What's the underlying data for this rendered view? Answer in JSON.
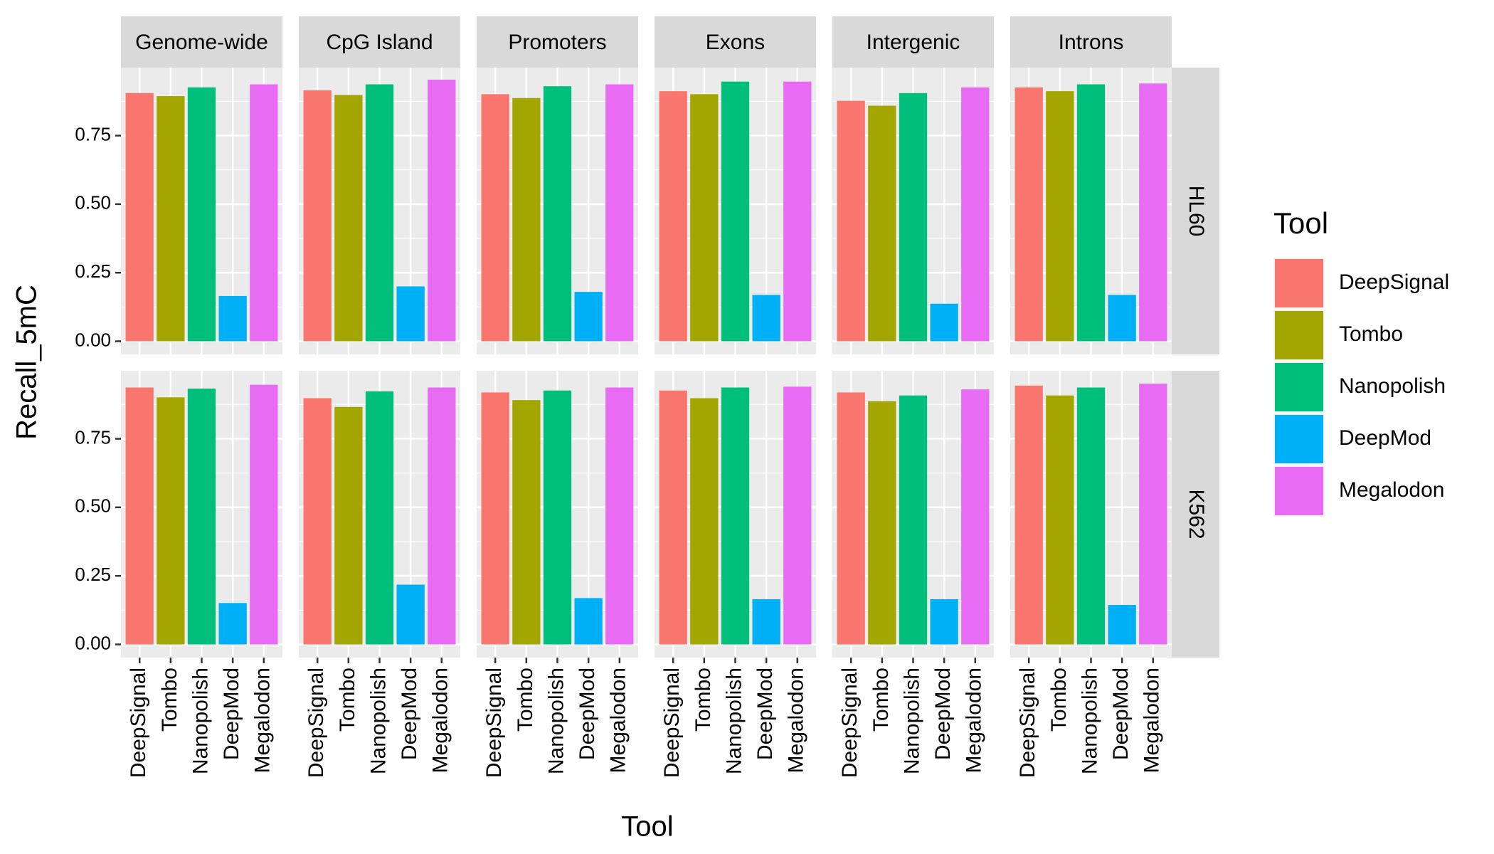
{
  "chart_data": {
    "type": "bar",
    "xlabel": "Tool",
    "ylabel": "Recall_5mC",
    "legend_title": "Tool",
    "categories": [
      "DeepSignal",
      "Tombo",
      "Nanopolish",
      "DeepMod",
      "Megalodon"
    ],
    "colors": [
      "#F8766D",
      "#A3A500",
      "#00BF7D",
      "#00B0F6",
      "#E76BF3"
    ],
    "facet_cols": [
      "Genome-wide",
      "CpG Island",
      "Promoters",
      "Exons",
      "Intergenic",
      "Introns"
    ],
    "facet_rows": [
      "HL60",
      "K562"
    ],
    "panels": [
      [
        [
          0.905,
          0.894,
          0.926,
          0.165,
          0.937
        ],
        [
          0.915,
          0.898,
          0.937,
          0.2,
          0.954
        ],
        [
          0.901,
          0.887,
          0.93,
          0.18,
          0.937
        ],
        [
          0.912,
          0.901,
          0.947,
          0.169,
          0.947
        ],
        [
          0.877,
          0.859,
          0.905,
          0.137,
          0.926
        ],
        [
          0.926,
          0.912,
          0.937,
          0.169,
          0.94
        ]
      ],
      [
        [
          0.937,
          0.901,
          0.933,
          0.151,
          0.947
        ],
        [
          0.898,
          0.866,
          0.923,
          0.218,
          0.937
        ],
        [
          0.919,
          0.891,
          0.926,
          0.169,
          0.937
        ],
        [
          0.926,
          0.898,
          0.937,
          0.165,
          0.94
        ],
        [
          0.919,
          0.887,
          0.908,
          0.165,
          0.93
        ],
        [
          0.944,
          0.908,
          0.937,
          0.144,
          0.951
        ]
      ]
    ],
    "ylim": [
      -0.048,
      0.998
    ],
    "yticks": [
      {
        "value": 0,
        "label": "0.00"
      },
      {
        "value": 0.25,
        "label": "0.25"
      },
      {
        "value": 0.5,
        "label": "0.50"
      },
      {
        "value": 0.75,
        "label": "0.75"
      }
    ],
    "grid": true
  }
}
